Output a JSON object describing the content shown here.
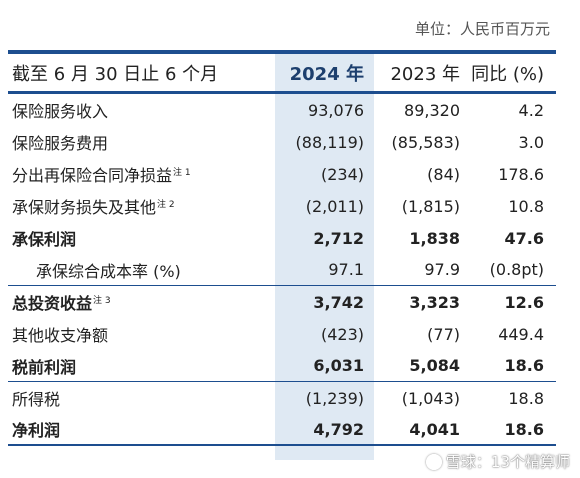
{
  "unit": "单位：人民币百万元",
  "header": {
    "label": "截至 6 月 30 日止 6 个月",
    "y2024": "2024 年",
    "y2023": "2023 年",
    "yoy": "同比 (%)"
  },
  "rows": [
    {
      "label": "保险服务收入",
      "note": "",
      "v2024": "93,076",
      "v2023": "89,320",
      "yoy": "4.2"
    },
    {
      "label": "保险服务费用",
      "note": "",
      "v2024": "(88,119)",
      "v2023": "(85,583)",
      "yoy": "3.0"
    },
    {
      "label": "分出再保险合同净损益",
      "note": "注 1",
      "v2024": "(234)",
      "v2023": "(84)",
      "yoy": "178.6"
    },
    {
      "label": "承保财务损失及其他",
      "note": "注 2",
      "v2024": "(2,011)",
      "v2023": "(1,815)",
      "yoy": "10.8"
    },
    {
      "label": "承保利润",
      "note": "",
      "v2024": "2,712",
      "v2023": "1,838",
      "yoy": "47.6"
    },
    {
      "label": "承保综合成本率 (%)",
      "note": "",
      "v2024": "97.1",
      "v2023": "97.9",
      "yoy": "(0.8pt)"
    },
    {
      "label": "总投资收益",
      "note": "注 3",
      "v2024": "3,742",
      "v2023": "3,323",
      "yoy": "12.6"
    },
    {
      "label": "其他收支净额",
      "note": "",
      "v2024": "(423)",
      "v2023": "(77)",
      "yoy": "449.4"
    },
    {
      "label": "税前利润",
      "note": "",
      "v2024": "6,031",
      "v2023": "5,084",
      "yoy": "18.6"
    },
    {
      "label": "所得税",
      "note": "",
      "v2024": "(1,239)",
      "v2023": "(1,043)",
      "yoy": "18.8"
    },
    {
      "label": "净利润",
      "note": "",
      "v2024": "4,792",
      "v2023": "4,041",
      "yoy": "18.6"
    }
  ],
  "watermark": "雪球：13个精算师"
}
